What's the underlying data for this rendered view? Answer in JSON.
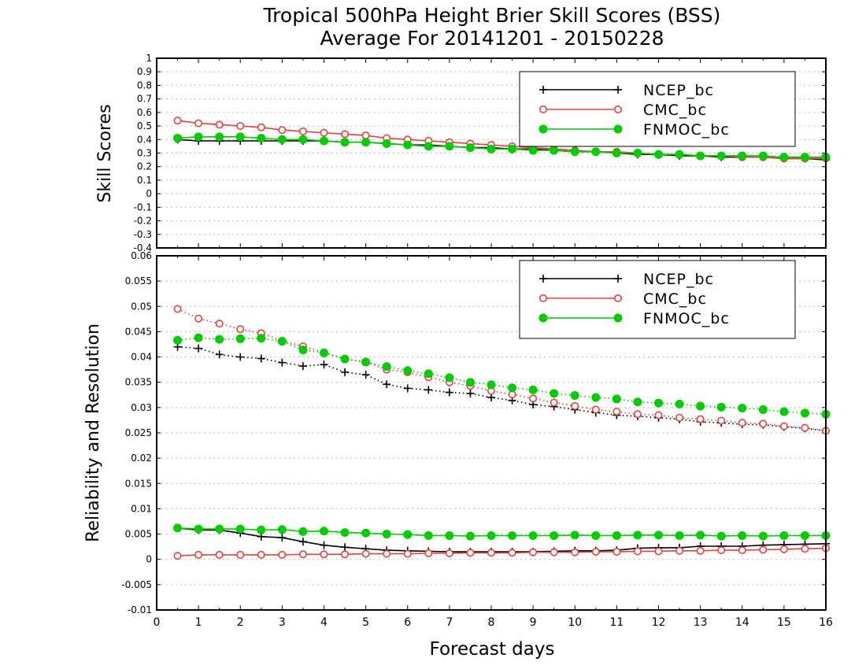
{
  "title_line1": "Tropical 500hPa Height Brier Skill Scores (BSS)",
  "title_line2": "Average For 20141201 - 20150228",
  "xlabel": "Forecast days",
  "colors": {
    "NCEP_bc": "#000000",
    "CMC_bc": "#e8403a",
    "FNMOC_bc": "#00cc00"
  },
  "chart_data": [
    {
      "type": "line",
      "title": "Tropical 500hPa Height Brier Skill Scores (BSS)",
      "subtitle": "Average For 20141201 - 20150228",
      "xlabel": "Forecast days",
      "ylabel": "Skill Scores",
      "xlim": [
        0,
        16
      ],
      "ylim": [
        -0.4,
        1
      ],
      "yticks": [
        "-0.4",
        "-0.3",
        "-0.2",
        "-0.1",
        "0",
        "0.1",
        "0.2",
        "0.3",
        "0.4",
        "0.5",
        "0.6",
        "0.7",
        "0.8",
        "0.9",
        "1"
      ],
      "grid": true,
      "legend": "top-right",
      "x": [
        0.5,
        1,
        1.5,
        2,
        2.5,
        3,
        3.5,
        4,
        4.5,
        5,
        5.5,
        6,
        6.5,
        7,
        7.5,
        8,
        8.5,
        9,
        9.5,
        10,
        10.5,
        11,
        11.5,
        12,
        12.5,
        13,
        13.5,
        14,
        14.5,
        15,
        15.5,
        16
      ],
      "series": [
        {
          "name": "NCEP_bc",
          "marker": "plus",
          "style": "solid",
          "values": [
            0.4,
            0.39,
            0.39,
            0.39,
            0.39,
            0.39,
            0.39,
            0.39,
            0.38,
            0.38,
            0.37,
            0.36,
            0.36,
            0.35,
            0.34,
            0.34,
            0.33,
            0.33,
            0.32,
            0.31,
            0.31,
            0.3,
            0.29,
            0.29,
            0.28,
            0.28,
            0.27,
            0.27,
            0.27,
            0.26,
            0.26,
            0.25
          ]
        },
        {
          "name": "CMC_bc",
          "marker": "circle-open",
          "style": "solid",
          "values": [
            0.54,
            0.52,
            0.51,
            0.5,
            0.49,
            0.47,
            0.46,
            0.45,
            0.44,
            0.43,
            0.41,
            0.4,
            0.39,
            0.38,
            0.37,
            0.36,
            0.35,
            0.34,
            0.33,
            0.32,
            0.31,
            0.31,
            0.3,
            0.29,
            0.29,
            0.28,
            0.28,
            0.27,
            0.27,
            0.26,
            0.26,
            0.26
          ]
        },
        {
          "name": "FNMOC_bc",
          "marker": "circle-filled",
          "style": "solid",
          "values": [
            0.41,
            0.42,
            0.42,
            0.42,
            0.41,
            0.4,
            0.4,
            0.39,
            0.38,
            0.38,
            0.37,
            0.36,
            0.35,
            0.35,
            0.34,
            0.33,
            0.33,
            0.32,
            0.32,
            0.31,
            0.31,
            0.3,
            0.3,
            0.29,
            0.29,
            0.28,
            0.28,
            0.28,
            0.28,
            0.27,
            0.27,
            0.27
          ]
        }
      ]
    },
    {
      "type": "line",
      "xlabel": "Forecast days",
      "ylabel": "Reliability and Resolution",
      "xlim": [
        0,
        16
      ],
      "ylim": [
        -0.01,
        0.06
      ],
      "yticks": [
        "-0.01",
        "-0.005",
        "0",
        "0.005",
        "0.01",
        "0.015",
        "0.02",
        "0.025",
        "0.03",
        "0.035",
        "0.04",
        "0.045",
        "0.05",
        "0.055",
        "0.06"
      ],
      "xticks": [
        "0",
        "1",
        "2",
        "3",
        "4",
        "5",
        "6",
        "7",
        "8",
        "9",
        "10",
        "11",
        "12",
        "13",
        "14",
        "15",
        "16"
      ],
      "grid": true,
      "legend": "top-right",
      "x": [
        0.5,
        1,
        1.5,
        2,
        2.5,
        3,
        3.5,
        4,
        4.5,
        5,
        5.5,
        6,
        6.5,
        7,
        7.5,
        8,
        8.5,
        9,
        9.5,
        10,
        10.5,
        11,
        11.5,
        12,
        12.5,
        13,
        13.5,
        14,
        14.5,
        15,
        15.5,
        16
      ],
      "series": [
        {
          "name": "NCEP_bc",
          "marker": "plus",
          "style": "dotted",
          "values": [
            0.042,
            0.0417,
            0.0405,
            0.04,
            0.0397,
            0.0389,
            0.0382,
            0.0385,
            0.037,
            0.0365,
            0.0346,
            0.0338,
            0.0335,
            0.033,
            0.0328,
            0.032,
            0.0314,
            0.0306,
            0.0302,
            0.0296,
            0.029,
            0.0285,
            0.0283,
            0.028,
            0.0277,
            0.0272,
            0.027,
            0.0267,
            0.0266,
            0.0262,
            0.0259,
            0.0254
          ]
        },
        {
          "name": "CMC_bc",
          "marker": "circle-open",
          "style": "dotted",
          "values": [
            0.0495,
            0.0476,
            0.0466,
            0.0455,
            0.0447,
            0.0432,
            0.0421,
            0.0409,
            0.0396,
            0.039,
            0.0375,
            0.037,
            0.036,
            0.035,
            0.0343,
            0.0333,
            0.0326,
            0.0318,
            0.031,
            0.0303,
            0.0296,
            0.0292,
            0.0287,
            0.0285,
            0.028,
            0.0277,
            0.0274,
            0.027,
            0.0268,
            0.0263,
            0.026,
            0.0254
          ]
        },
        {
          "name": "FNMOC_bc",
          "marker": "circle-filled",
          "style": "dotted",
          "values": [
            0.0433,
            0.0438,
            0.0435,
            0.0436,
            0.0437,
            0.0431,
            0.0414,
            0.0408,
            0.0396,
            0.039,
            0.0381,
            0.0373,
            0.0367,
            0.0359,
            0.035,
            0.0345,
            0.0339,
            0.0335,
            0.0328,
            0.0324,
            0.032,
            0.0317,
            0.0311,
            0.0309,
            0.0307,
            0.0303,
            0.0301,
            0.0299,
            0.0296,
            0.0292,
            0.0289,
            0.0287
          ]
        },
        {
          "name": "NCEP_bc",
          "marker": "plus",
          "style": "solid",
          "values": [
            0.0062,
            0.0058,
            0.0058,
            0.0052,
            0.0045,
            0.0043,
            0.0035,
            0.0028,
            0.0024,
            0.0021,
            0.0018,
            0.0017,
            0.0016,
            0.0015,
            0.0015,
            0.0015,
            0.0015,
            0.0015,
            0.0016,
            0.0017,
            0.0017,
            0.0018,
            0.0022,
            0.0023,
            0.0023,
            0.0026,
            0.0026,
            0.0026,
            0.0028,
            0.0029,
            0.003,
            0.0031
          ]
        },
        {
          "name": "CMC_bc",
          "marker": "circle-open",
          "style": "solid",
          "values": [
            0.0007,
            0.0009,
            0.0009,
            0.0009,
            0.0009,
            0.0009,
            0.001,
            0.001,
            0.001,
            0.0011,
            0.0011,
            0.0011,
            0.0012,
            0.0012,
            0.0013,
            0.0013,
            0.0013,
            0.0014,
            0.0014,
            0.0014,
            0.0015,
            0.0015,
            0.0016,
            0.0016,
            0.0017,
            0.0017,
            0.0018,
            0.0018,
            0.0019,
            0.002,
            0.0021,
            0.0022
          ]
        },
        {
          "name": "FNMOC_bc",
          "marker": "circle-filled",
          "style": "solid",
          "values": [
            0.0062,
            0.006,
            0.006,
            0.006,
            0.0058,
            0.0059,
            0.0055,
            0.0056,
            0.0053,
            0.0052,
            0.005,
            0.0049,
            0.0047,
            0.0047,
            0.0046,
            0.0047,
            0.0047,
            0.0047,
            0.0047,
            0.0048,
            0.0047,
            0.0047,
            0.0048,
            0.0048,
            0.0047,
            0.0048,
            0.0046,
            0.0047,
            0.0046,
            0.0047,
            0.0047,
            0.0047
          ]
        }
      ]
    }
  ]
}
